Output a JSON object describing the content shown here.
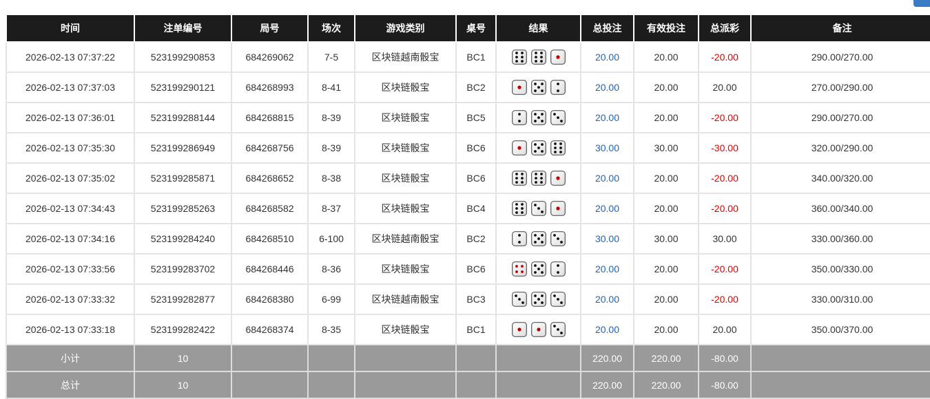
{
  "headers": [
    "时间",
    "注单编号",
    "局号",
    "场次",
    "游戏类别",
    "桌号",
    "结果",
    "总投注",
    "有效投注",
    "总派彩",
    "备注"
  ],
  "rows": [
    {
      "time": "2026-02-13 07:37:22",
      "bet_id": "523199290853",
      "round": "684269062",
      "session": "7-5",
      "game": "区块链越南骰宝",
      "table": "BC1",
      "dice": [
        6,
        6,
        1
      ],
      "total": "20.00",
      "valid": "20.00",
      "payout": "-20.00",
      "note": "290.00/270.00"
    },
    {
      "time": "2026-02-13 07:37:03",
      "bet_id": "523199290121",
      "round": "684268993",
      "session": "8-41",
      "game": "区块链骰宝",
      "table": "BC2",
      "dice": [
        1,
        5,
        2
      ],
      "total": "20.00",
      "valid": "20.00",
      "payout": "20.00",
      "note": "270.00/290.00"
    },
    {
      "time": "2026-02-13 07:36:01",
      "bet_id": "523199288144",
      "round": "684268815",
      "session": "8-39",
      "game": "区块链骰宝",
      "table": "BC5",
      "dice": [
        2,
        5,
        3
      ],
      "total": "20.00",
      "valid": "20.00",
      "payout": "-20.00",
      "note": "290.00/270.00"
    },
    {
      "time": "2026-02-13 07:35:30",
      "bet_id": "523199286949",
      "round": "684268756",
      "session": "8-39",
      "game": "区块链骰宝",
      "table": "BC6",
      "dice": [
        1,
        5,
        6
      ],
      "total": "30.00",
      "valid": "30.00",
      "payout": "-30.00",
      "note": "320.00/290.00"
    },
    {
      "time": "2026-02-13 07:35:02",
      "bet_id": "523199285871",
      "round": "684268652",
      "session": "8-38",
      "game": "区块链骰宝",
      "table": "BC6",
      "dice": [
        6,
        6,
        1
      ],
      "total": "20.00",
      "valid": "20.00",
      "payout": "-20.00",
      "note": "340.00/320.00"
    },
    {
      "time": "2026-02-13 07:34:43",
      "bet_id": "523199285263",
      "round": "684268582",
      "session": "8-37",
      "game": "区块链骰宝",
      "table": "BC4",
      "dice": [
        6,
        3,
        1
      ],
      "total": "20.00",
      "valid": "20.00",
      "payout": "-20.00",
      "note": "360.00/340.00"
    },
    {
      "time": "2026-02-13 07:34:16",
      "bet_id": "523199284240",
      "round": "684268510",
      "session": "6-100",
      "game": "区块链越南骰宝",
      "table": "BC2",
      "dice": [
        2,
        5,
        3
      ],
      "total": "30.00",
      "valid": "30.00",
      "payout": "30.00",
      "note": "330.00/360.00"
    },
    {
      "time": "2026-02-13 07:33:56",
      "bet_id": "523199283702",
      "round": "684268446",
      "session": "8-36",
      "game": "区块链骰宝",
      "table": "BC6",
      "dice": [
        4,
        5,
        2
      ],
      "total": "20.00",
      "valid": "20.00",
      "payout": "-20.00",
      "note": "350.00/330.00"
    },
    {
      "time": "2026-02-13 07:33:32",
      "bet_id": "523199282877",
      "round": "684268380",
      "session": "6-99",
      "game": "区块链越南骰宝",
      "table": "BC3",
      "dice": [
        3,
        5,
        3
      ],
      "total": "20.00",
      "valid": "20.00",
      "payout": "-20.00",
      "note": "330.00/310.00"
    },
    {
      "time": "2026-02-13 07:33:18",
      "bet_id": "523199282422",
      "round": "684268374",
      "session": "8-35",
      "game": "区块链骰宝",
      "table": "BC1",
      "dice": [
        1,
        1,
        3
      ],
      "total": "20.00",
      "valid": "20.00",
      "payout": "20.00",
      "note": "350.00/370.00"
    }
  ],
  "footer": [
    {
      "label": "小计",
      "count": "10",
      "total": "220.00",
      "valid": "220.00",
      "payout": "-80.00"
    },
    {
      "label": "总计",
      "count": "10",
      "total": "220.00",
      "valid": "220.00",
      "payout": "-80.00"
    }
  ],
  "colors": {
    "header_bg": "#1c1c1c",
    "footer_bg": "#9a9a9a",
    "bet_blue": "#1a63c8",
    "negative_red": "#e00000",
    "accent_button": "#3a7cc4"
  }
}
